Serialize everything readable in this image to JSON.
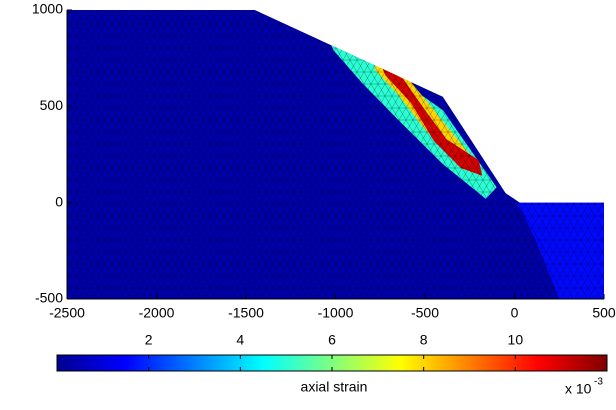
{
  "chart_data": {
    "type": "mesh",
    "xlim": [
      -2500,
      500
    ],
    "xticks": [
      -2500,
      -2000,
      -1500,
      -1000,
      -500,
      0,
      500
    ],
    "ylim": [
      -500,
      1000
    ],
    "yticks": [
      -500,
      0,
      500,
      1000
    ],
    "clim": [
      0,
      12
    ],
    "cticks": [
      2,
      4,
      6,
      8,
      10
    ],
    "colorbar_label": "axial strain",
    "colorbar_exponent_label": "x 10",
    "colorbar_exponent": "-3",
    "colormap": "jet",
    "regions": [
      {
        "polygon": [
          [
            -2500,
            1000
          ],
          [
            -1450,
            1000
          ],
          [
            -400,
            550
          ],
          [
            -50,
            50
          ],
          [
            30,
            0
          ],
          [
            500,
            0
          ],
          [
            500,
            -500
          ],
          [
            -2500,
            -500
          ]
        ],
        "value": 0.5
      },
      {
        "polygon": [
          [
            0,
            0
          ],
          [
            500,
            0
          ],
          [
            500,
            -500
          ],
          [
            250,
            -500
          ],
          [
            120,
            -200
          ],
          [
            40,
            -40
          ]
        ],
        "value": 1.6
      },
      {
        "polygon": [
          [
            -1030,
            830
          ],
          [
            -800,
            740
          ],
          [
            -400,
            480
          ],
          [
            -100,
            80
          ],
          [
            -160,
            20
          ],
          [
            -400,
            200
          ],
          [
            -650,
            430
          ],
          [
            -850,
            620
          ],
          [
            -1010,
            790
          ]
        ],
        "value": 5
      },
      {
        "polygon": [
          [
            -780,
            730
          ],
          [
            -600,
            650
          ],
          [
            -450,
            480
          ],
          [
            -250,
            250
          ],
          [
            -300,
            210
          ],
          [
            -500,
            380
          ],
          [
            -650,
            560
          ],
          [
            -780,
            690
          ]
        ],
        "value": 8
      },
      {
        "polygon": [
          [
            -750,
            720
          ],
          [
            -620,
            640
          ],
          [
            -500,
            480
          ],
          [
            -380,
            330
          ],
          [
            -200,
            220
          ],
          [
            -180,
            140
          ],
          [
            -300,
            180
          ],
          [
            -450,
            320
          ],
          [
            -580,
            520
          ],
          [
            -720,
            660
          ]
        ],
        "value": 11
      }
    ]
  }
}
